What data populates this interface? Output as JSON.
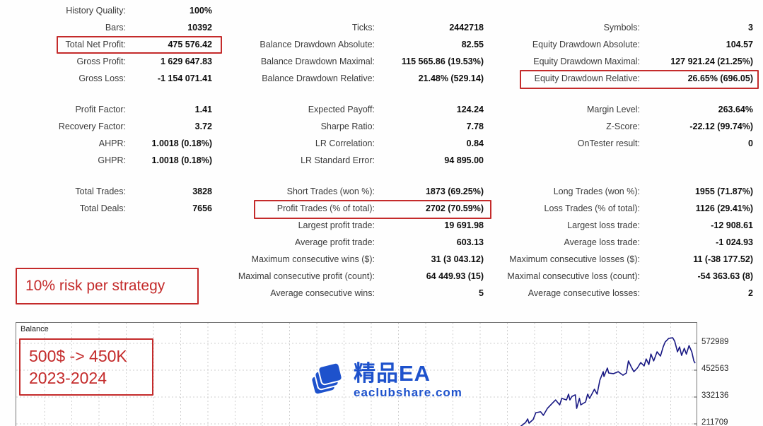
{
  "stats": {
    "col1": {
      "s1": [
        {
          "label": "History Quality:",
          "value": "100%"
        },
        {
          "label": "Bars:",
          "value": "10392"
        },
        {
          "label": "Total Net Profit:",
          "value": "475 576.42"
        },
        {
          "label": "Gross Profit:",
          "value": "1 629 647.83"
        },
        {
          "label": "Gross Loss:",
          "value": "-1 154 071.41"
        }
      ],
      "s2": [
        {
          "label": "Profit Factor:",
          "value": "1.41"
        },
        {
          "label": "Recovery Factor:",
          "value": "3.72"
        },
        {
          "label": "AHPR:",
          "value": "1.0018 (0.18%)"
        },
        {
          "label": "GHPR:",
          "value": "1.0018 (0.18%)"
        }
      ],
      "s3": [
        {
          "label": "Total Trades:",
          "value": "3828"
        },
        {
          "label": "Total Deals:",
          "value": "7656"
        }
      ]
    },
    "col2": {
      "s1": [
        {
          "label": "Ticks:",
          "value": "2442718"
        },
        {
          "label": "Balance Drawdown Absolute:",
          "value": "82.55"
        },
        {
          "label": "Balance Drawdown Maximal:",
          "value": "115 565.86 (19.53%)"
        },
        {
          "label": "Balance Drawdown Relative:",
          "value": "21.48% (529.14)"
        }
      ],
      "s2": [
        {
          "label": "Expected Payoff:",
          "value": "124.24"
        },
        {
          "label": "Sharpe Ratio:",
          "value": "7.78"
        },
        {
          "label": "LR Correlation:",
          "value": "0.84"
        },
        {
          "label": "LR Standard Error:",
          "value": "94 895.00"
        }
      ],
      "s3": [
        {
          "label": "Short Trades (won %):",
          "value": "1873 (69.25%)"
        },
        {
          "label": "Profit Trades (% of total):",
          "value": "2702 (70.59%)"
        },
        {
          "label": "Largest profit trade:",
          "value": "19 691.98"
        },
        {
          "label": "Average profit trade:",
          "value": "603.13"
        },
        {
          "label": "Maximum consecutive wins ($):",
          "value": "31 (3 043.12)"
        },
        {
          "label": "Maximal consecutive profit (count):",
          "value": "64 449.93 (15)"
        },
        {
          "label": "Average consecutive wins:",
          "value": "5"
        }
      ]
    },
    "col3": {
      "s1": [
        {
          "label": "Symbols:",
          "value": "3"
        },
        {
          "label": "Equity Drawdown Absolute:",
          "value": "104.57"
        },
        {
          "label": "Equity Drawdown Maximal:",
          "value": "127 921.24 (21.25%)"
        },
        {
          "label": "Equity Drawdown Relative:",
          "value": "26.65% (696.05)"
        }
      ],
      "s2": [
        {
          "label": "Margin Level:",
          "value": "263.64%"
        },
        {
          "label": "Z-Score:",
          "value": "-22.12 (99.74%)"
        },
        {
          "label": "OnTester result:",
          "value": "0"
        }
      ],
      "s3": [
        {
          "label": "Long Trades (won %):",
          "value": "1955 (71.87%)"
        },
        {
          "label": "Loss Trades (% of total):",
          "value": "1126 (29.41%)"
        },
        {
          "label": "Largest loss trade:",
          "value": "-12 908.61"
        },
        {
          "label": "Average loss trade:",
          "value": "-1 024.93"
        },
        {
          "label": "Maximum consecutive losses ($):",
          "value": "11 (-38 177.52)"
        },
        {
          "label": "Maximal consecutive loss (count):",
          "value": "-54 363.63 (8)"
        },
        {
          "label": "Average consecutive losses:",
          "value": "2"
        }
      ]
    }
  },
  "annotations": {
    "risk_note": "10% risk per strategy",
    "start_note_line1": "500$ -> 450K",
    "start_note_line2": "2023-2024"
  },
  "watermark": {
    "brand": "精品EA",
    "site": "eaclubshare.com",
    "color": "#1e52cc"
  },
  "chart_data": {
    "type": "line",
    "title": "Balance",
    "legend_position": "top-left-inside",
    "grid": true,
    "yticks": [
      572989,
      452563,
      332136,
      211709
    ],
    "ylim": [
      199000,
      665000
    ],
    "line_color": "#181883",
    "points": [
      {
        "x": 74.0,
        "balance": 199000
      },
      {
        "x": 74.8,
        "balance": 218000
      },
      {
        "x": 75.1,
        "balance": 234000
      },
      {
        "x": 75.3,
        "balance": 215000
      },
      {
        "x": 75.9,
        "balance": 231000
      },
      {
        "x": 76.3,
        "balance": 262000
      },
      {
        "x": 77.0,
        "balance": 266000
      },
      {
        "x": 77.4,
        "balance": 250000
      },
      {
        "x": 78.0,
        "balance": 281000
      },
      {
        "x": 78.7,
        "balance": 304000
      },
      {
        "x": 79.2,
        "balance": 319000
      },
      {
        "x": 79.8,
        "balance": 297000
      },
      {
        "x": 80.1,
        "balance": 326000
      },
      {
        "x": 80.8,
        "balance": 319000
      },
      {
        "x": 81.1,
        "balance": 345000
      },
      {
        "x": 81.3,
        "balance": 319000
      },
      {
        "x": 81.6,
        "balance": 335000
      },
      {
        "x": 82.1,
        "balance": 342000
      },
      {
        "x": 82.3,
        "balance": 281000
      },
      {
        "x": 82.7,
        "balance": 326000
      },
      {
        "x": 82.9,
        "balance": 297000
      },
      {
        "x": 83.6,
        "balance": 310000
      },
      {
        "x": 83.9,
        "balance": 345000
      },
      {
        "x": 84.2,
        "balance": 326000
      },
      {
        "x": 84.9,
        "balance": 367000
      },
      {
        "x": 85.3,
        "balance": 345000
      },
      {
        "x": 85.7,
        "balance": 408000
      },
      {
        "x": 86.2,
        "balance": 446000
      },
      {
        "x": 86.3,
        "balance": 424000
      },
      {
        "x": 86.8,
        "balance": 462000
      },
      {
        "x": 87.0,
        "balance": 440000
      },
      {
        "x": 87.7,
        "balance": 437000
      },
      {
        "x": 88.4,
        "balance": 446000
      },
      {
        "x": 89.1,
        "balance": 430000
      },
      {
        "x": 89.6,
        "balance": 440000
      },
      {
        "x": 89.9,
        "balance": 494000
      },
      {
        "x": 90.3,
        "balance": 468000
      },
      {
        "x": 90.7,
        "balance": 446000
      },
      {
        "x": 91.2,
        "balance": 462000
      },
      {
        "x": 91.7,
        "balance": 487000
      },
      {
        "x": 92.2,
        "balance": 472000
      },
      {
        "x": 92.5,
        "balance": 503000
      },
      {
        "x": 92.9,
        "balance": 478000
      },
      {
        "x": 93.2,
        "balance": 525000
      },
      {
        "x": 93.6,
        "balance": 494000
      },
      {
        "x": 94.1,
        "balance": 535000
      },
      {
        "x": 94.6,
        "balance": 516000
      },
      {
        "x": 95.0,
        "balance": 557000
      },
      {
        "x": 95.3,
        "balance": 579000
      },
      {
        "x": 95.8,
        "balance": 595000
      },
      {
        "x": 96.4,
        "balance": 598000
      },
      {
        "x": 96.7,
        "balance": 582000
      },
      {
        "x": 97.1,
        "balance": 535000
      },
      {
        "x": 97.4,
        "balance": 557000
      },
      {
        "x": 97.7,
        "balance": 519000
      },
      {
        "x": 98.1,
        "balance": 551000
      },
      {
        "x": 98.4,
        "balance": 525000
      },
      {
        "x": 98.8,
        "balance": 563000
      },
      {
        "x": 99.2,
        "balance": 535000
      },
      {
        "x": 99.5,
        "balance": 494000
      },
      {
        "x": 99.7,
        "balance": 484000
      }
    ]
  }
}
